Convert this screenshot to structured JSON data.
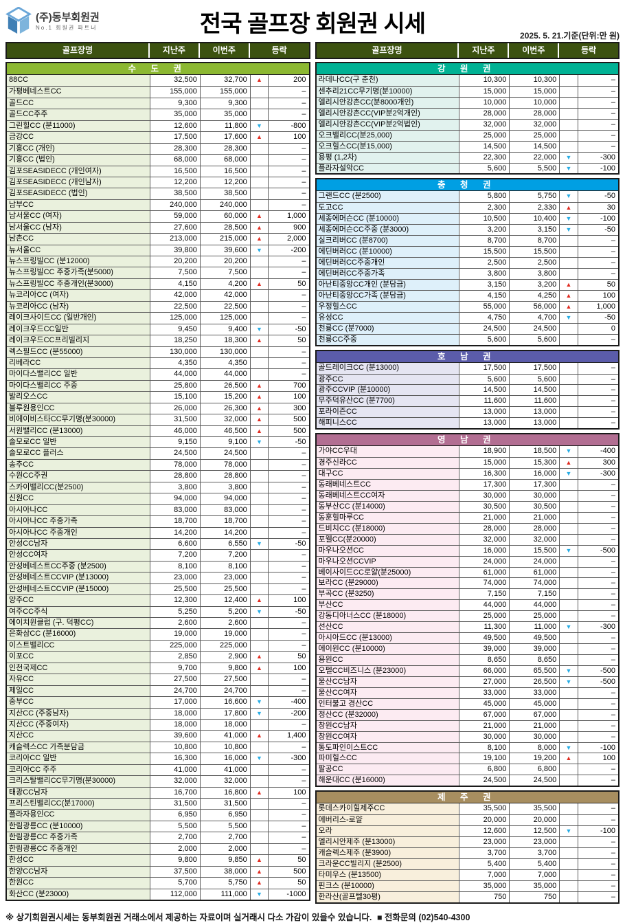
{
  "header": {
    "company": "(주)동부회원권",
    "tagline": "No.1 회원권 파트너",
    "title": "전국 골프장 회원권 시세",
    "date_note": "2025. 5. 21.기준(단위:만 원)"
  },
  "table": {
    "columns": [
      "골프장명",
      "지난주",
      "이번주",
      "등락"
    ],
    "row_fields": [
      "name",
      "last_week",
      "this_week",
      "direction",
      "change"
    ]
  },
  "colors": {
    "table_header_bg": "#3c5210",
    "up_arrow": "#e02b20",
    "down_arrow": "#27ace4"
  },
  "sections": [
    {
      "id": "sudogwon",
      "display": "수 도 권",
      "column": "left",
      "header_bg": "#8cb832",
      "row_bg": "#eaf1dd",
      "rows": [
        [
          "88CC",
          "32,500",
          "32,700",
          "u",
          "200"
        ],
        [
          "가평베네스트CC",
          "155,000",
          "155,000",
          "",
          "–"
        ],
        [
          "골드CC",
          "9,300",
          "9,300",
          "",
          "–"
        ],
        [
          "골드CC주주",
          "35,000",
          "35,000",
          "",
          "–"
        ],
        [
          "그린힐CC (분11000)",
          "12,600",
          "11,800",
          "d",
          "-800"
        ],
        [
          "금강CC",
          "17,500",
          "17,600",
          "u",
          "100"
        ],
        [
          "기흥CC (개인)",
          "28,300",
          "28,300",
          "",
          "–"
        ],
        [
          "기흥CC (법인)",
          "68,000",
          "68,000",
          "",
          "–"
        ],
        [
          "김포SEASIDECC (개인여자)",
          "16,500",
          "16,500",
          "",
          "–"
        ],
        [
          "김포SEASIDECC (개인남자)",
          "12,200",
          "12,200",
          "",
          "–"
        ],
        [
          "김포SEASIDECC (법인)",
          "38,500",
          "38,500",
          "",
          "–"
        ],
        [
          "남부CC",
          "240,000",
          "240,000",
          "",
          "–"
        ],
        [
          "남서울CC (여자)",
          "59,000",
          "60,000",
          "u",
          "1,000"
        ],
        [
          "남서울CC (남자)",
          "27,600",
          "28,500",
          "u",
          "900"
        ],
        [
          "남촌CC",
          "213,000",
          "215,000",
          "u",
          "2,000"
        ],
        [
          "뉴서울CC",
          "39,800",
          "39,600",
          "d",
          "-200"
        ],
        [
          "뉴스프링빌CC (분12000)",
          "20,200",
          "20,200",
          "",
          "–"
        ],
        [
          "뉴스프링빌CC 주중가족(분5000)",
          "7,500",
          "7,500",
          "",
          "–"
        ],
        [
          "뉴스프링빌CC 주중개인(분3000)",
          "4,150",
          "4,200",
          "u",
          "50"
        ],
        [
          "뉴코리아CC (여자)",
          "42,000",
          "42,000",
          "",
          "–"
        ],
        [
          "뉴코리아CC (남자)",
          "22,500",
          "22,500",
          "",
          "–"
        ],
        [
          "레이크사이드CC (일반개인)",
          "125,000",
          "125,000",
          "",
          "–"
        ],
        [
          "레이크우드CC일반",
          "9,450",
          "9,400",
          "d",
          "-50"
        ],
        [
          "레이크우드CC프리빌리지",
          "18,250",
          "18,300",
          "u",
          "50"
        ],
        [
          "렉스필드CC (분55000)",
          "130,000",
          "130,000",
          "",
          "–"
        ],
        [
          "리베라CC",
          "4,350",
          "4,350",
          "",
          "–"
        ],
        [
          "마이다스밸리CC 일반",
          "44,000",
          "44,000",
          "",
          "–"
        ],
        [
          "마이다스밸리CC 주중",
          "25,800",
          "26,500",
          "u",
          "700"
        ],
        [
          "발리오스CC",
          "15,100",
          "15,200",
          "u",
          "100"
        ],
        [
          "블루원용인CC",
          "26,000",
          "26,300",
          "u",
          "300"
        ],
        [
          "비에이비스타CC무기명(분30000)",
          "31,500",
          "32,000",
          "u",
          "500"
        ],
        [
          "서원밸리CC (분13000)",
          "46,000",
          "46,500",
          "u",
          "500"
        ],
        [
          "솔모로CC 일반",
          "9,150",
          "9,100",
          "d",
          "-50"
        ],
        [
          "솔모로CC 플러스",
          "24,500",
          "24,500",
          "",
          "–"
        ],
        [
          "송추CC",
          "78,000",
          "78,000",
          "",
          "–"
        ],
        [
          "수원CC주권",
          "28,800",
          "28,800",
          "",
          "–"
        ],
        [
          "스카이밸리CC(분2500)",
          "3,800",
          "3,800",
          "",
          "–"
        ],
        [
          "신원CC",
          "94,000",
          "94,000",
          "",
          "–"
        ],
        [
          "아시아나CC",
          "83,000",
          "83,000",
          "",
          "–"
        ],
        [
          "아시아나CC 주중가족",
          "18,700",
          "18,700",
          "",
          "–"
        ],
        [
          "아시아나CC 주중개인",
          "14,200",
          "14,200",
          "",
          "–"
        ],
        [
          "안성CC남자",
          "6,600",
          "6,550",
          "d",
          "-50"
        ],
        [
          "안성CC여자",
          "7,200",
          "7,200",
          "",
          "–"
        ],
        [
          "안성베네스트CC주중 (분2500)",
          "8,100",
          "8,100",
          "",
          "–"
        ],
        [
          "안성베네스트CCVIP (분13000)",
          "23,000",
          "23,000",
          "",
          "–"
        ],
        [
          "안성베네스트CCVIP (분15000)",
          "25,500",
          "25,500",
          "",
          "–"
        ],
        [
          "양주CC",
          "12,300",
          "12,400",
          "u",
          "100"
        ],
        [
          "여주CC주식",
          "5,250",
          "5,200",
          "d",
          "-50"
        ],
        [
          "에이치원클럽 (구. 덕평CC)",
          "2,600",
          "2,600",
          "",
          "–"
        ],
        [
          "은화삼CC (분16000)",
          "19,000",
          "19,000",
          "",
          "–"
        ],
        [
          "이스트밸리CC",
          "225,000",
          "225,000",
          "",
          "–"
        ],
        [
          "이포CC",
          "2,850",
          "2,900",
          "u",
          "50"
        ],
        [
          "인천국제CC",
          "9,700",
          "9,800",
          "u",
          "100"
        ],
        [
          "자유CC",
          "27,500",
          "27,500",
          "",
          "–"
        ],
        [
          "제일CC",
          "24,700",
          "24,700",
          "",
          "–"
        ],
        [
          "중부CC",
          "17,000",
          "16,600",
          "d",
          "-400"
        ],
        [
          "지산CC (주중남자)",
          "18,000",
          "17,800",
          "d",
          "-200"
        ],
        [
          "지산CC (주중여자)",
          "18,000",
          "18,000",
          "",
          "–"
        ],
        [
          "지산CC",
          "39,600",
          "41,000",
          "u",
          "1,400"
        ],
        [
          "캐슬렉스CC 가족분담금",
          "10,800",
          "10,800",
          "",
          "–"
        ],
        [
          "코리아CC 일반",
          "16,300",
          "16,000",
          "d",
          "-300"
        ],
        [
          "코리아CC 주주",
          "41,000",
          "41,000",
          "",
          "–"
        ],
        [
          "크리스탈밸리CC무기명(분30000)",
          "32,000",
          "32,000",
          "",
          "–"
        ],
        [
          "태광CC남자",
          "16,700",
          "16,800",
          "u",
          "100"
        ],
        [
          "프리스틴밸리CC(분17000)",
          "31,500",
          "31,500",
          "",
          "–"
        ],
        [
          "플라자용인CC",
          "6,950",
          "6,950",
          "",
          "–"
        ],
        [
          "한림광릉CC (분10000)",
          "5,500",
          "5,500",
          "",
          "–"
        ],
        [
          "한림광릉CC 주중가족",
          "2,700",
          "2,700",
          "",
          "–"
        ],
        [
          "한림광릉CC 주중개인",
          "2,000",
          "2,000",
          "",
          "–"
        ],
        [
          "한성CC",
          "9,800",
          "9,850",
          "u",
          "50"
        ],
        [
          "한양CC남자",
          "37,500",
          "38,000",
          "u",
          "500"
        ],
        [
          "한원CC",
          "5,700",
          "5,750",
          "u",
          "50"
        ],
        [
          "화산CC (분23000)",
          "112,000",
          "111,000",
          "d",
          "-1000"
        ]
      ]
    },
    {
      "id": "gangwon",
      "display": "강 원 권",
      "column": "right",
      "header_bg": "#00b294",
      "row_bg": "#e1f2ee",
      "rows": [
        [
          "라데나CC(구 춘천)",
          "10,300",
          "10,300",
          "",
          "–"
        ],
        [
          "센추리21CC무기명(분10000)",
          "15,000",
          "15,000",
          "",
          "–"
        ],
        [
          "엘리시안강촌CC(분8000개인)",
          "10,000",
          "10,000",
          "",
          "–"
        ],
        [
          "엘리시안강촌CC(VIP분2억개인)",
          "28,000",
          "28,000",
          "",
          "–"
        ],
        [
          "엘리시안강촌CC(VIP분2억법인)",
          "32,000",
          "32,000",
          "",
          "–"
        ],
        [
          "오크밸리CC(분25,000)",
          "25,000",
          "25,000",
          "",
          "–"
        ],
        [
          "오크힐스CC(분15,000)",
          "14,500",
          "14,500",
          "",
          "–"
        ],
        [
          "용평 (1,2차)",
          "22,300",
          "22,000",
          "d",
          "-300"
        ],
        [
          "플라자설악CC",
          "5,600",
          "5,500",
          "d",
          "-100"
        ]
      ]
    },
    {
      "id": "chungcheong",
      "display": "충 청 권",
      "column": "right",
      "header_bg": "#009fe3",
      "row_bg": "#def0fa",
      "rows": [
        [
          "그랜드CC (분2500)",
          "5,800",
          "5,750",
          "d",
          "-50"
        ],
        [
          "도고CC",
          "2,300",
          "2,330",
          "u",
          "30"
        ],
        [
          "세종에머슨CC (분10000)",
          "10,500",
          "10,400",
          "d",
          "-100"
        ],
        [
          "세종에머슨CC주중 (분3000)",
          "3,200",
          "3,150",
          "d",
          "-50"
        ],
        [
          "실크리버CC (분8700)",
          "8,700",
          "8,700",
          "",
          "–"
        ],
        [
          "에딘버러CC (분10000)",
          "15,500",
          "15,500",
          "",
          "–"
        ],
        [
          "에딘버러CC주중개인",
          "2,500",
          "2,500",
          "",
          "–"
        ],
        [
          "에딘버러CC주중가족",
          "3,800",
          "3,800",
          "",
          "–"
        ],
        [
          "아난티중앙CC개인 (분담금)",
          "3,150",
          "3,200",
          "u",
          "50"
        ],
        [
          "아난티중앙CC가족 (분담금)",
          "4,150",
          "4,250",
          "u",
          "100"
        ],
        [
          "우정힐스CC",
          "55,000",
          "56,000",
          "u",
          "1,000"
        ],
        [
          "유성CC",
          "4,750",
          "4,700",
          "d",
          "-50"
        ],
        [
          "천룡CC (분7000)",
          "24,500",
          "24,500",
          "",
          "0"
        ],
        [
          "천룡CC주중",
          "5,600",
          "5,600",
          "",
          "–"
        ]
      ]
    },
    {
      "id": "honam",
      "display": "호 남 권",
      "column": "right",
      "header_bg": "#5b5caa",
      "row_bg": "#e5e5f2",
      "rows": [
        [
          "골드레이크CC (분13000)",
          "17,500",
          "17,500",
          "",
          "–"
        ],
        [
          "광주CC",
          "5,600",
          "5,600",
          "",
          "–"
        ],
        [
          "광주CCVIP (분10000)",
          "14,500",
          "14,500",
          "",
          "–"
        ],
        [
          "무주덕유산CC (분7700)",
          "11,600",
          "11,600",
          "",
          "–"
        ],
        [
          "포라이즌CC",
          "13,000",
          "13,000",
          "",
          "–"
        ],
        [
          "해피니스CC",
          "13,000",
          "13,000",
          "",
          "–"
        ]
      ]
    },
    {
      "id": "yeongnam",
      "display": "영 남 권",
      "column": "right",
      "header_bg": "#b26e92",
      "row_bg": "#fcebf2",
      "rows": [
        [
          "가야CC우대",
          "18,900",
          "18,500",
          "d",
          "-400"
        ],
        [
          "경주신라CC",
          "15,000",
          "15,300",
          "u",
          "300"
        ],
        [
          "대구CC",
          "16,300",
          "16,000",
          "d",
          "-300"
        ],
        [
          "동래베네스트CC",
          "17,300",
          "17,300",
          "",
          "–"
        ],
        [
          "동래베네스트CC여자",
          "30,000",
          "30,000",
          "",
          "–"
        ],
        [
          "동부산CC (분14000)",
          "30,500",
          "30,500",
          "",
          "–"
        ],
        [
          "동훈힐마루CC",
          "21,000",
          "21,000",
          "",
          "–"
        ],
        [
          "드비치CC (분18000)",
          "28,000",
          "28,000",
          "",
          "–"
        ],
        [
          "포웰CC(분20000)",
          "32,000",
          "32,000",
          "",
          "–"
        ],
        [
          "마우나오션CC",
          "16,000",
          "15,500",
          "d",
          "-500"
        ],
        [
          "마우나오션CCVIP",
          "24,000",
          "24,000",
          "",
          "–"
        ],
        [
          "베이사이드CC로얄(분25000)",
          "61,000",
          "61,000",
          "",
          "–"
        ],
        [
          "보라CC (분29000)",
          "74,000",
          "74,000",
          "",
          "–"
        ],
        [
          "부곡CC (분3250)",
          "7,150",
          "7,150",
          "",
          "–"
        ],
        [
          "부산CC",
          "44,000",
          "44,000",
          "",
          "–"
        ],
        [
          "강동디아너스CC (분18000)",
          "25,000",
          "25,000",
          "",
          "–"
        ],
        [
          "선산CC",
          "11,300",
          "11,000",
          "d",
          "-300"
        ],
        [
          "아시아드CC (분13000)",
          "49,500",
          "49,500",
          "",
          "–"
        ],
        [
          "에이원CC (분10000)",
          "39,000",
          "39,000",
          "",
          "–"
        ],
        [
          "용원CC",
          "8,650",
          "8,650",
          "",
          "–"
        ],
        [
          "오펠CC비즈니스 (분23000)",
          "66,000",
          "65,500",
          "d",
          "-500"
        ],
        [
          "울산CC남자",
          "27,000",
          "26,500",
          "d",
          "-500"
        ],
        [
          "울산CC여자",
          "33,000",
          "33,000",
          "",
          "–"
        ],
        [
          "인터불고 경산CC",
          "45,000",
          "45,000",
          "",
          "–"
        ],
        [
          "정산CC (분32000)",
          "67,000",
          "67,000",
          "",
          "–"
        ],
        [
          "창원CC남자",
          "21,000",
          "21,000",
          "",
          "–"
        ],
        [
          "창원CC여자",
          "30,000",
          "30,000",
          "",
          "–"
        ],
        [
          "통도파인이스트CC",
          "8,100",
          "8,000",
          "d",
          "-100"
        ],
        [
          "파미힐스CC",
          "19,100",
          "19,200",
          "u",
          "100"
        ],
        [
          "팔공CC",
          "6,800",
          "6,800",
          "",
          "–"
        ],
        [
          "해운대CC (분16000)",
          "24,500",
          "24,500",
          "",
          "–"
        ]
      ]
    },
    {
      "id": "jeju",
      "display": "제 주 권",
      "column": "right",
      "header_bg": "#a78e60",
      "row_bg": "#f8efdc",
      "rows": [
        [
          "롯데스카이힐제주CC",
          "35,500",
          "35,500",
          "",
          "–"
        ],
        [
          "에버리스-로얄",
          "20,000",
          "20,000",
          "",
          "–"
        ],
        [
          "오라",
          "12,600",
          "12,500",
          "d",
          "-100"
        ],
        [
          "엘리시안제주 (분13000)",
          "23,000",
          "23,000",
          "",
          "–"
        ],
        [
          "캐슬렉스제주 (분3900)",
          "3,700",
          "3,700",
          "",
          "–"
        ],
        [
          "크라운CC빌리지 (분2500)",
          "5,400",
          "5,400",
          "",
          "–"
        ],
        [
          "타미우스 (분13500)",
          "7,000",
          "7,000",
          "",
          "–"
        ],
        [
          "핀크스 (분10000)",
          "35,000",
          "35,000",
          "",
          "–"
        ],
        [
          "한라산(골프텔30평)",
          "750",
          "750",
          "",
          "–"
        ]
      ]
    }
  ],
  "footer": {
    "note": "※ 상기회원권시세는 동부회원권 거래소에서 제공하는 자료이며 실거래시 다소 가감이 있을수 있습니다.",
    "phone": "■ 전화문의 (02)540-4300"
  }
}
